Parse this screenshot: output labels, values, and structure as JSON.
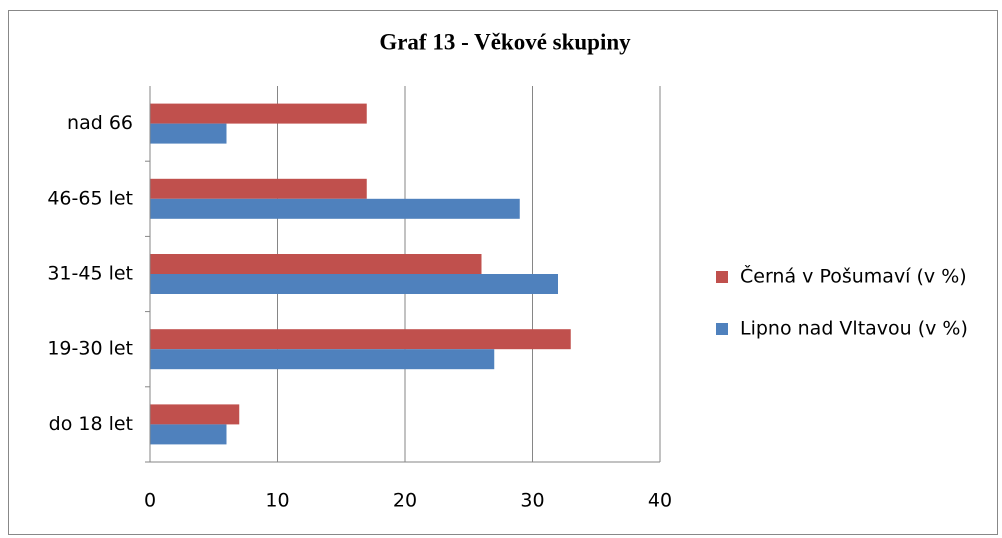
{
  "chart_data": {
    "type": "barh",
    "title": "Graf 13 - Věkové skupiny",
    "categories": [
      "do 18 let",
      "19-30 let",
      "31-45 let",
      "46-65 let",
      "nad 66"
    ],
    "series": [
      {
        "name": "Černá v Pošumaví (v %)",
        "color": "#c0504d",
        "values": [
          7,
          33,
          26,
          17,
          17
        ]
      },
      {
        "name": "Lipno nad Vltavou (v %)",
        "color": "#4f81bd",
        "values": [
          6,
          27,
          32,
          29,
          6
        ]
      }
    ],
    "xlim": [
      0,
      40
    ],
    "xticks": [
      0,
      10,
      20,
      30,
      40
    ],
    "grid": true,
    "legend": "right"
  }
}
